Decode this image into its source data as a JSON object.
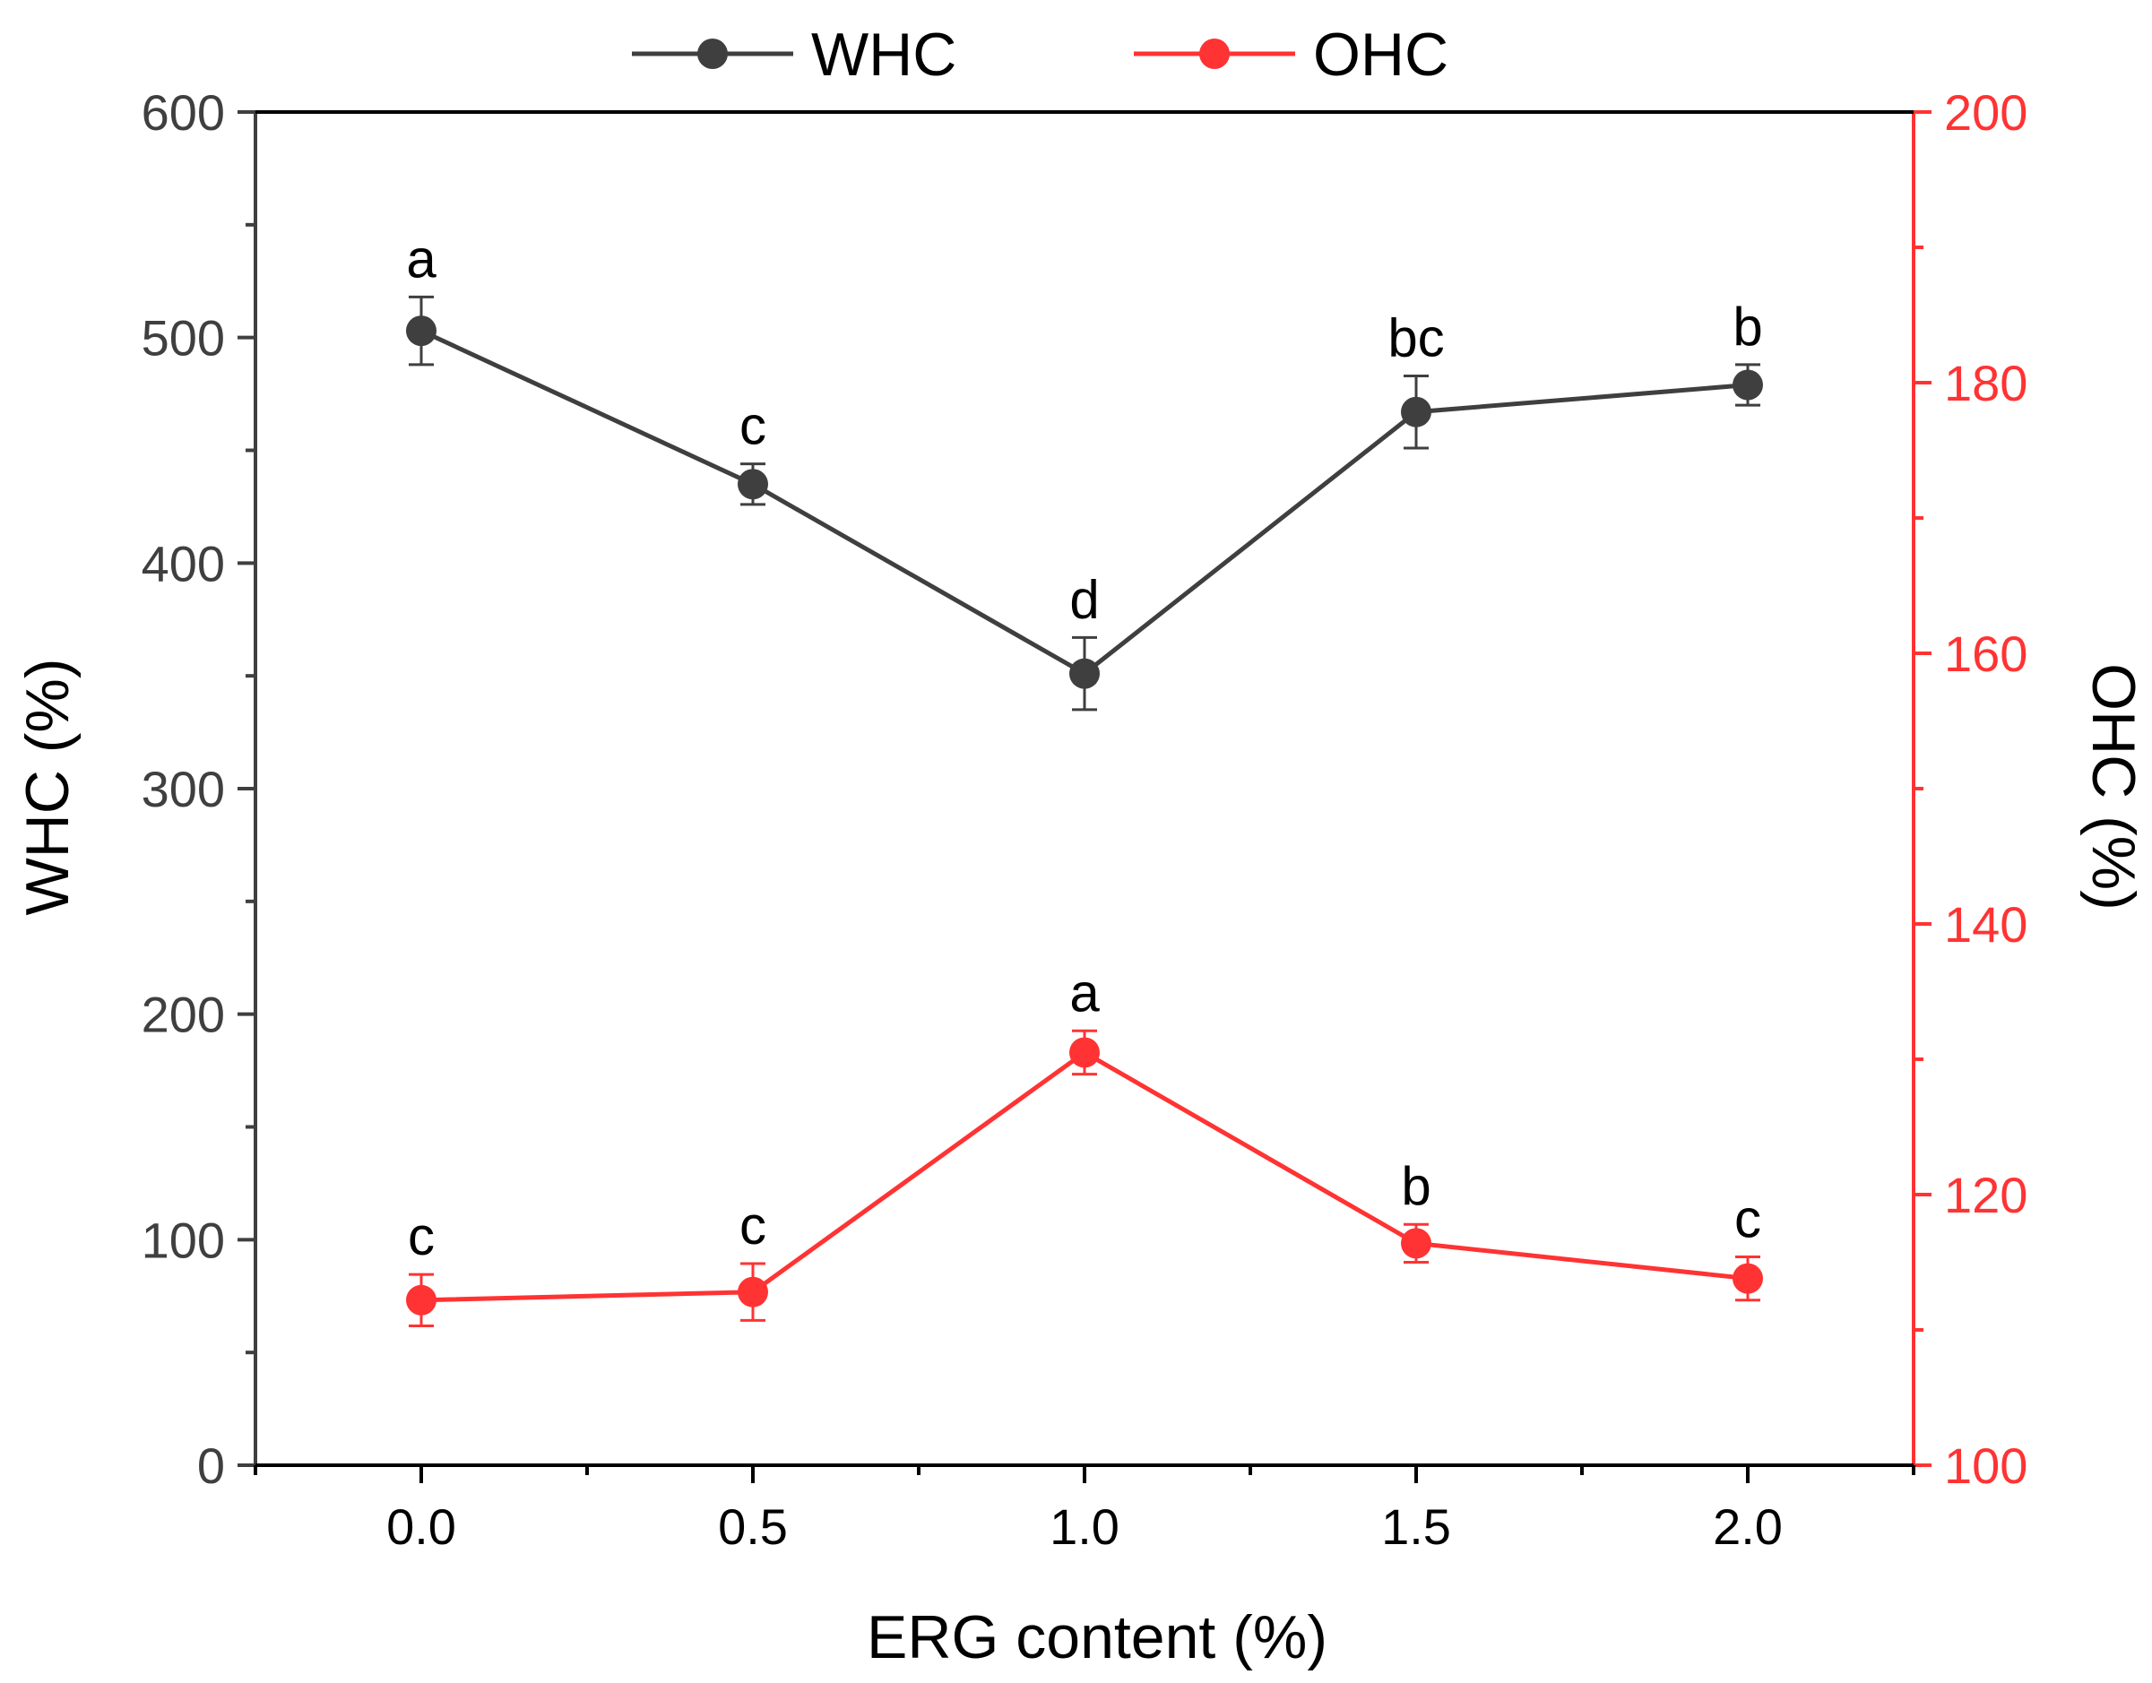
{
  "chart_data": {
    "type": "line",
    "x": [
      0.0,
      0.5,
      1.0,
      1.5,
      2.0
    ],
    "x_tick_labels": [
      "0.0",
      "0.5",
      "1.0",
      "1.5",
      "2.0"
    ],
    "xlabel": "ERG content (%)",
    "xlim": [
      -0.25,
      2.25
    ],
    "y_left": {
      "label": "WHC (%)",
      "range": [
        0,
        600
      ],
      "ticks": [
        0,
        100,
        200,
        300,
        400,
        500,
        600
      ],
      "tick_labels": [
        "0",
        "100",
        "200",
        "300",
        "400",
        "500",
        "600"
      ],
      "color": "#3f3f3f"
    },
    "y_right": {
      "label": "OHC (%)",
      "range": [
        100,
        200
      ],
      "ticks": [
        100,
        120,
        140,
        160,
        180,
        200
      ],
      "tick_labels": [
        "100",
        "120",
        "140",
        "160",
        "180",
        "200"
      ],
      "color": "#ff3333"
    },
    "series": [
      {
        "name": "WHC",
        "axis": "left",
        "color": "#3f3f3f",
        "values": [
          503,
          435,
          351,
          467,
          479
        ],
        "errors": [
          15,
          9,
          16,
          16,
          9
        ],
        "significance": [
          "a",
          "c",
          "d",
          "bc",
          "b"
        ]
      },
      {
        "name": "OHC",
        "axis": "right",
        "color": "#ff3333",
        "values": [
          112.2,
          112.8,
          130.5,
          116.4,
          113.8
        ],
        "errors": [
          1.9,
          2.1,
          1.6,
          1.4,
          1.6
        ],
        "significance": [
          "c",
          "c",
          "a",
          "b",
          "c"
        ]
      }
    ],
    "legend": {
      "position": "top-center",
      "entries": [
        "WHC",
        "OHC"
      ]
    }
  }
}
